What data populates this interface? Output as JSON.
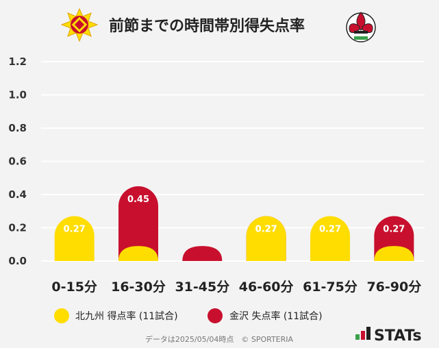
{
  "title": "前節までの時間帯別得失点率",
  "colors": {
    "home": "#ffdd00",
    "away": "#c8102e",
    "grid": "#ffffff"
  },
  "chart_data": {
    "type": "bar",
    "title": "前節までの時間帯別得失点率",
    "categories": [
      "0-15分",
      "16-30分",
      "31-45分",
      "46-60分",
      "61-75分",
      "76-90分"
    ],
    "ylim": [
      0,
      1.2
    ],
    "yticks": [
      "1.2",
      "1.0",
      "0.8",
      "0.6",
      "0.4",
      "0.2",
      "0.0"
    ],
    "grid": true,
    "legend_position": "bottom",
    "series": [
      {
        "name": "北九州 得点率 (11試合)",
        "values": [
          0.27,
          0.09,
          0,
          0.27,
          0.27,
          0.09
        ],
        "labels": [
          "0.27",
          "",
          "",
          "0.27",
          "0.27",
          ""
        ]
      },
      {
        "name": "金沢 失点率 (11試合)",
        "values": [
          0,
          0.45,
          0.09,
          0.27,
          0.09,
          0.27
        ],
        "labels": [
          "",
          "0.45",
          "",
          "0.27",
          "",
          "0.27"
        ]
      }
    ]
  },
  "footer": "データは2025/05/04時点　© SPORTERIA",
  "brand": "STATs"
}
